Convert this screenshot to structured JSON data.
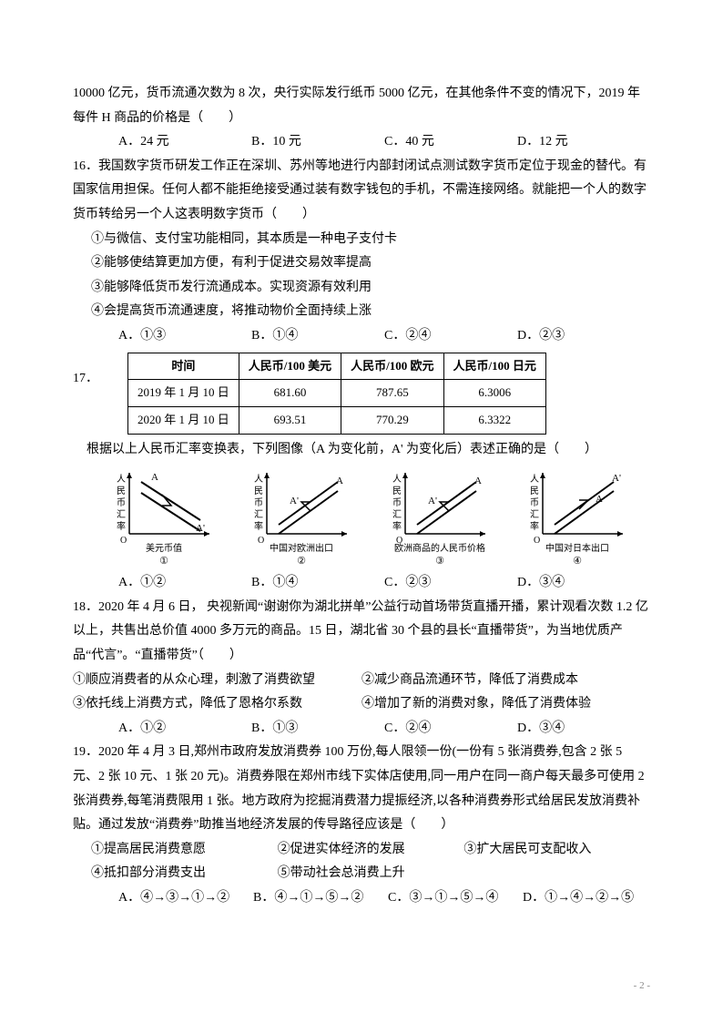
{
  "q15": {
    "stem_cont": "10000 亿元，货币流通次数为 8 次，央行实际发行纸币 5000 亿元，在其他条件不变的情况下，2019 年每件 H 商品的价格是（　　）",
    "opts": {
      "A": "A．24 元",
      "B": "B．10 元",
      "C": "C．40 元",
      "D": "D．12 元"
    }
  },
  "q16": {
    "num": "16．",
    "stem": "我国数字货币研发工作正在深圳、苏州等地进行内部封闭试点测试数字货币定位于现金的替代。有国家信用担保。任何人都不能拒绝接受通过装有数字钱包的手机，不需连接网络。就能把一个人的数字货币转给另一个人这表明数字货币（　　）",
    "items": [
      "①与微信、支付宝功能相同，其本质是一种电子支付卡",
      "②能够使结算更加方便，有利于促进交易效率提高",
      "③能够降低货币发行流通成本。实现资源有效利用",
      "④会提高货币流通速度，将推动物价全面持续上涨"
    ],
    "opts": {
      "A": "A．①③",
      "B": "B．①④",
      "C": "C．②④",
      "D": "D．②③"
    }
  },
  "q17": {
    "num": "17．",
    "table": {
      "headers": [
        "时间",
        "人民币/100 美元",
        "人民币/100 欧元",
        "人民币/100 日元"
      ],
      "rows": [
        [
          "2019 年 1 月 10 日",
          "681.60",
          "787.65",
          "6.3006"
        ],
        [
          "2020 年 1 月 10 日",
          "693.51",
          "770.29",
          "6.3322"
        ]
      ]
    },
    "post": "根据以上人民币汇率变换表，下列图像（A 为变化前，A' 为变化后）表述正确的是（　　）",
    "charts": [
      {
        "ylabel": "人民币汇率",
        "xlabel": "美元币值",
        "num": "①",
        "dir": "down",
        "apos": "left"
      },
      {
        "ylabel": "人民币汇率",
        "xlabel": "中国对欧洲出口",
        "num": "②",
        "dir": "up",
        "apos": "left"
      },
      {
        "ylabel": "人民币汇率",
        "xlabel": "欧洲商品的人民币价格",
        "num": "③",
        "dir": "up",
        "apos": "left"
      },
      {
        "ylabel": "人民币汇率",
        "xlabel": "中国对日本出口",
        "num": "④",
        "dir": "up",
        "apos": "right"
      }
    ],
    "opts": {
      "A": "A．①②",
      "B": "B．①④",
      "C": "C．②③",
      "D": "D．③④"
    }
  },
  "q18": {
    "num": "18．",
    "stem": "2020 年 4 月 6 日， 央视新闻“谢谢你为湖北拼单”公益行动首场带货直播开播，累计观看次数 1.2 亿以上，共售出总价值 4000 多万元的商品。15 日，湖北省 30 个县的县长“直播带货”，为当地优质产品“代言”。“直播带货”（　　）",
    "items_left": [
      "①顺应消费者的从众心理，刺激了消费欲望",
      "③依托线上消费方式，降低了恩格尔系数"
    ],
    "items_right": [
      "②减少商品流通环节，降低了消费成本",
      "④增加了新的消费对象，降低了消费体验"
    ],
    "opts": {
      "A": "A．①②",
      "B": "B．①③",
      "C": "C．②④",
      "D": "D．③④"
    }
  },
  "q19": {
    "num": "19．",
    "stem": "2020 年 4 月 3 日,郑州市政府发放消费券 100 万份,每人限领一份(一份有 5 张消费券,包含 2 张 5 元、2 张 10 元、1 张 20 元)。消费券限在郑州市线下实体店使用,同一用户在同一商户每天最多可使用 2 张消费券,每笔消费限用 1 张。地方政府为挖掘消费潜力提振经济,以各种消费券形式给居民发放消费补贴。通过发放“消费券”助推当地经济发展的传导路径应该是（　　）",
    "items_line1": [
      "①提高居民消费意愿",
      "②促进实体经济的发展",
      "③扩大居民可支配收入"
    ],
    "items_line2": [
      "④抵扣部分消费支出",
      "⑤带动社会总消费上升"
    ],
    "opts": {
      "A": "A．④→③→①→②",
      "B": "B．④→①→⑤→②",
      "C": "C．③→①→⑤→④",
      "D": "D．①→④→②→⑤"
    }
  },
  "pagenum": "- 2 -"
}
